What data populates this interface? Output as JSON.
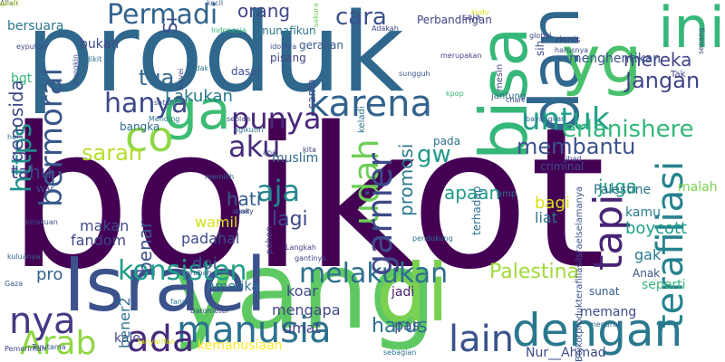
{
  "cloud": {
    "words": [
      {
        "text": "boikot",
        "color": "#440154"
      },
      {
        "text": "produk",
        "color": "#30678d"
      },
      {
        "text": "yang",
        "color": "#5ec962"
      },
      {
        "text": "Israel",
        "color": "#3b528b"
      },
      {
        "text": "di",
        "color": "#7ad151"
      },
      {
        "text": "bisa",
        "color": "#35b779"
      },
      {
        "text": "dan",
        "color": "#31688e"
      },
      {
        "text": "yg",
        "color": "#4ac16d"
      },
      {
        "text": "ini",
        "color": "#35b779"
      },
      {
        "text": "terafiliasi",
        "color": "#26828e"
      },
      {
        "text": "dengan",
        "color": "#2a788e"
      },
      {
        "text": "ga",
        "color": "#3dbc74"
      },
      {
        "text": "manusia",
        "color": "#2c728e"
      },
      {
        "text": "ada",
        "color": "#472c7a"
      },
      {
        "text": "nya",
        "color": "#443a83"
      },
      {
        "text": "Arab",
        "color": "#8fd744"
      },
      {
        "text": "https",
        "color": "#21908d"
      },
      {
        "text": "karena",
        "color": "#33638d"
      },
      {
        "text": "konsisten",
        "color": "#1f9e89"
      },
      {
        "text": "melakukan",
        "color": "#2d708e"
      },
      {
        "text": "co",
        "color": "#8fd744"
      },
      {
        "text": "hanya",
        "color": "#3e4a89"
      },
      {
        "text": "punya",
        "color": "#482878"
      },
      {
        "text": "aku",
        "color": "#472d7b"
      },
      {
        "text": "aja",
        "color": "#23898e"
      },
      {
        "text": "tapi",
        "color": "#482475"
      },
      {
        "text": "lain",
        "color": "#3b528b"
      },
      {
        "text": "udah",
        "color": "#6ece58"
      },
      {
        "text": "garnier",
        "color": "#3e4989"
      },
      {
        "text": "Permadi",
        "color": "#33638d"
      },
      {
        "text": "untuk",
        "color": "#1fa188"
      },
      {
        "text": "bermoral",
        "color": "#38588c"
      },
      {
        "text": "membantu",
        "color": "#3b528b"
      },
      {
        "text": "Palestina",
        "color": "#a0da39"
      },
      {
        "text": "gw",
        "color": "#1f9a8a"
      },
      {
        "text": "tua",
        "color": "#31688e"
      },
      {
        "text": "Lakukan",
        "color": "#2a788e"
      },
      {
        "text": "Jangan",
        "color": "#404688"
      },
      {
        "text": "mereka",
        "color": "#414487"
      },
      {
        "text": "cara",
        "color": "#3b528b"
      },
      {
        "text": "orang",
        "color": "#404688"
      },
      {
        "text": "genosida",
        "color": "#3e4a89"
      },
      {
        "text": "erlanishere",
        "color": "#35b779"
      },
      {
        "text": "saran",
        "color": "#b5de2b"
      },
      {
        "text": "tahu",
        "color": "#414487"
      },
      {
        "text": "apaan",
        "color": "#1f9a8a"
      },
      {
        "text": "juga",
        "color": "#1fa188"
      },
      {
        "text": "promosi",
        "color": "#2a788e"
      },
      {
        "text": "lagi",
        "color": "#3e4a89"
      },
      {
        "text": "harus",
        "color": "#2c728e"
      },
      {
        "text": "hati",
        "color": "#365c8d"
      },
      {
        "text": "Si",
        "color": "#3e4a89"
      },
      {
        "text": "benar",
        "color": "#3b528b"
      },
      {
        "text": "mengapa",
        "color": "#404688"
      },
      {
        "text": "umat",
        "color": "#414487"
      },
      {
        "text": "koar",
        "color": "#3f4788"
      },
      {
        "text": "bagi",
        "color": "#d8e219"
      },
      {
        "text": "liat",
        "color": "#2a788e"
      },
      {
        "text": "boycott",
        "color": "#1f9e89"
      },
      {
        "text": "kamu",
        "color": "#287c8e"
      },
      {
        "text": "gak",
        "color": "#2a788e"
      },
      {
        "text": "Anak",
        "color": "#3b528b"
      },
      {
        "text": "seperti",
        "color": "#35b779"
      },
      {
        "text": "Palestine",
        "color": "#2c728e"
      },
      {
        "text": "malah",
        "color": "#7ad151"
      },
      {
        "text": "wamil",
        "color": "#d2e21b"
      },
      {
        "text": "padahal",
        "color": "#3e4a89"
      },
      {
        "text": "doi",
        "color": "#3b528b"
      },
      {
        "text": "makan",
        "color": "#3e4a89"
      },
      {
        "text": "fandom",
        "color": "#404688"
      },
      {
        "text": "muslim",
        "color": "#31688e"
      },
      {
        "text": "Amerika",
        "color": "#2c728e"
      },
      {
        "text": "kalo",
        "color": "#404688"
      },
      {
        "text": "pas",
        "color": "#3b528b"
      },
      {
        "text": "jadi",
        "color": "#481b6d"
      },
      {
        "text": "memang",
        "color": "#3e4a89"
      },
      {
        "text": "sunat",
        "color": "#365c8d"
      },
      {
        "text": "Nur__Ahmad",
        "color": "#3e4989"
      },
      {
        "text": "kemanusiaan",
        "color": "#fde725"
      },
      {
        "text": "pro",
        "color": "#33638d"
      },
      {
        "text": "bener2",
        "color": "#2c728e"
      },
      {
        "text": "menghentikan",
        "color": "#3b528b"
      },
      {
        "text": "bukan",
        "color": "#3e4a89"
      },
      {
        "text": "bersuara",
        "color": "#2a788e"
      },
      {
        "text": "Perbandingan",
        "color": "#404688"
      },
      {
        "text": "pisang",
        "color": "#414487"
      },
      {
        "text": "dasar",
        "color": "#3b528b"
      },
      {
        "text": "gerakan",
        "color": "#38588c"
      },
      {
        "text": "zionis",
        "color": "#414487"
      },
      {
        "text": "bgt",
        "color": "#35b779"
      },
      {
        "text": "bangka",
        "color": "#31688e"
      },
      {
        "text": "criminal",
        "color": "#3e4a89"
      },
      {
        "text": "terhadap",
        "color": "#2c728e"
      },
      {
        "text": "saja",
        "color": "#414487"
      },
      {
        "text": "jantung",
        "color": "#31688e"
      },
      {
        "text": "sih",
        "color": "#3b528b"
      },
      {
        "text": "Tak",
        "color": "#404688"
      },
      {
        "text": "pada",
        "color": "#2c728e"
      },
      {
        "text": "sama",
        "color": "#3e4a89"
      },
      {
        "text": "munafikun",
        "color": "#2a788e"
      },
      {
        "text": "kudu",
        "color": "#d8e219"
      },
      {
        "text": "Boikotprodukterafiliasilsraelselamanya",
        "color": "#3b528b"
      },
      {
        "text": "pohon",
        "color": "#414487"
      },
      {
        "text": "keladi",
        "color": "#2c728e"
      },
      {
        "text": "War",
        "color": "#3e4a89"
      },
      {
        "text": "amp",
        "color": "#31688e"
      },
      {
        "text": "mesin",
        "color": "#404688"
      },
      {
        "text": "kecil",
        "color": "#38588c"
      },
      {
        "text": "Indonesia",
        "color": "#35b779"
      },
      {
        "text": "sakura",
        "color": "#6ece58"
      },
      {
        "text": "Adakah",
        "color": "#3e4a89"
      },
      {
        "text": "fans",
        "color": "#2a788e"
      },
      {
        "text": "global",
        "color": "#414487"
      },
      {
        "text": "menurut",
        "color": "#31688e"
      },
      {
        "text": "Pemerintah",
        "color": "#404688"
      },
      {
        "text": "Terutama",
        "color": "#3b528b"
      },
      {
        "text": "sebagian",
        "color": "#2c728e"
      },
      {
        "text": "Barometer",
        "color": "#3e4a89"
      },
      {
        "text": "sungguh",
        "color": "#38588c"
      },
      {
        "text": "chart",
        "color": "#404688"
      },
      {
        "text": "kpop",
        "color": "#35b779"
      },
      {
        "text": "jihad",
        "color": "#3e4a89"
      },
      {
        "text": "survei",
        "color": "#414487"
      },
      {
        "text": "tidak",
        "color": "#2c728e"
      },
      {
        "text": "harusnya",
        "color": "#3b528b"
      },
      {
        "text": "merupakan",
        "color": "#404688"
      },
      {
        "text": "bayangkan",
        "color": "#31688e"
      },
      {
        "text": "kelakuan",
        "color": "#3e4a89"
      },
      {
        "text": "berubah",
        "color": "#38588c"
      },
      {
        "text": "gantinya",
        "color": "#414487"
      },
      {
        "text": "pendukung",
        "color": "#2c728e"
      },
      {
        "text": "idolnya",
        "color": "#3b528b"
      },
      {
        "text": "Langkah",
        "color": "#404688"
      },
      {
        "text": "memilih",
        "color": "#31688e"
      },
      {
        "text": "body",
        "color": "#3e4a89"
      },
      {
        "text": "ngikutin",
        "color": "#2c728e"
      },
      {
        "text": "seolah",
        "color": "#414487"
      },
      {
        "text": "Mending",
        "color": "#2a788e"
      },
      {
        "text": "satunya",
        "color": "#38588c"
      },
      {
        "text": "mungkin",
        "color": "#3e4a89"
      },
      {
        "text": "eyputun",
        "color": "#404688"
      },
      {
        "text": "kuluanya",
        "color": "#31688e"
      },
      {
        "text": "apa",
        "color": "#3b528b"
      },
      {
        "text": "hal",
        "color": "#2c728e"
      },
      {
        "text": "kita",
        "color": "#414487"
      },
      {
        "text": "agak",
        "color": "#3e4a89"
      },
      {
        "text": "Gaza",
        "color": "#38588c"
      },
      {
        "text": "tanyarifan",
        "color": "#d8e219"
      },
      {
        "text": "senang",
        "color": "#404688"
      },
      {
        "text": "dikit",
        "color": "#2c728e"
      },
      {
        "text": "Allah",
        "color": "#3e4a89"
      },
      {
        "text": "ganti",
        "color": "#b5de2b"
      }
    ]
  }
}
